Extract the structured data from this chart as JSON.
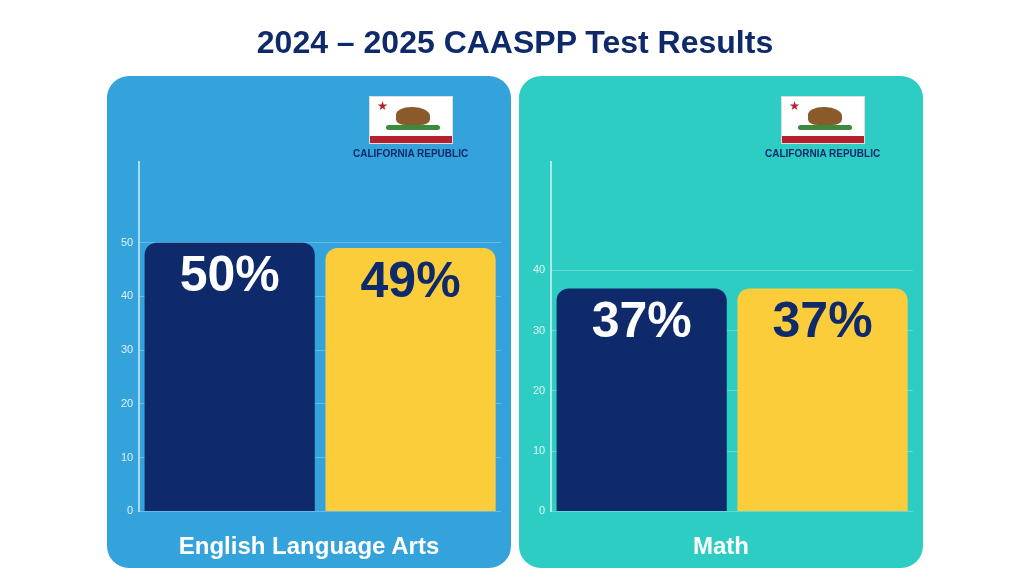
{
  "chart_data": [
    {
      "type": "bar",
      "title": "2024 – 2025 CAASPP Test Results",
      "xlabel": "English Language Arts",
      "categories": [
        null,
        "CALIFORNIA REPUBLIC"
      ],
      "values": [
        50,
        49
      ],
      "colors": [
        "#0e2a6b",
        "#fccd3b"
      ],
      "value_labels": [
        "50%",
        "49%"
      ],
      "ylim": [
        0,
        65
      ],
      "yticks": [
        0,
        10,
        20,
        30,
        40,
        50
      ],
      "grid": "y",
      "legend": false
    },
    {
      "type": "bar",
      "xlabel": "Math",
      "categories": [
        null,
        "CALIFORNIA REPUBLIC"
      ],
      "values": [
        37,
        37
      ],
      "colors": [
        "#0e2a6b",
        "#fccd3b"
      ],
      "value_labels": [
        "37%",
        "37%"
      ],
      "ylim": [
        0,
        58
      ],
      "yticks": [
        0,
        10,
        20,
        30,
        40
      ],
      "grid": "y",
      "legend": false
    }
  ]
}
